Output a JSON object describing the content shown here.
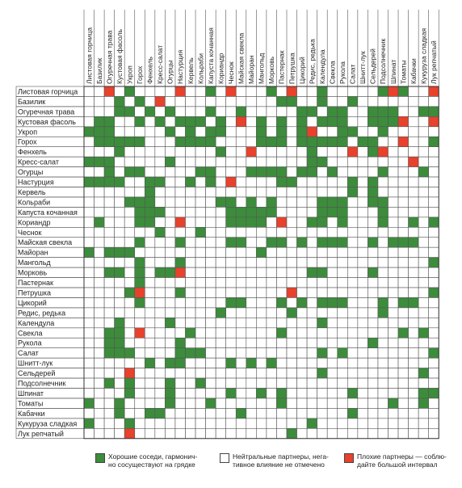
{
  "chart_data": {
    "type": "heatmap",
    "columns": [
      "Листовая горчица",
      "Базилик",
      "Огуречная трава",
      "Кустовая фасоль",
      "Укроп",
      "Горох",
      "Фенхель",
      "Кресс-салат",
      "Огурцы",
      "Настурция",
      "Кервель",
      "Кольраби",
      "Капуста кочанная",
      "Кориандр",
      "Чеснок",
      "Майская свекла",
      "Майоран",
      "Мангольд",
      "Морковь",
      "Пастернак",
      "Петрушка",
      "Цикорий",
      "Редис, редька",
      "Календула",
      "Свекла",
      "Рукола",
      "Салат",
      "Шнитт-лук",
      "Сельдерей",
      "Подсолнечник",
      "Шпинат",
      "Томаты",
      "Кабачки",
      "Кукуруза сладкая",
      "Лук репчатый"
    ],
    "rows": [
      "Листовая горчица",
      "Базилик",
      "Огуречная трава",
      "Кустовая фасоль",
      "Укроп",
      "Горох",
      "Фенхель",
      "Кресс-салат",
      "Огурцы",
      "Настурция",
      "Кервель",
      "Кольраби",
      "Капуста кочанная",
      "Кориандр",
      "Чеснок",
      "Майская свекла",
      "Майоран",
      "Мангольд",
      "Морковь",
      "Пастернак",
      "Петрушка",
      "Цикорий",
      "Редис, редька",
      "Календула",
      "Свекла",
      "Рукола",
      "Салат",
      "Шнитт-лук",
      "Сельдерей",
      "Подсолнечник",
      "Шпинат",
      "Томаты",
      "Кабачки",
      "Кукуруза сладкая",
      "Лук репчатый"
    ],
    "values": [
      "00201000020010200010200100000121002",
      "00010102000000000001100100100000000",
      "00011010100010010000011011001110011",
      "01100101011101020101010111001112002",
      "11100000101011000101012001100100000",
      "01111100011110000111011111011002001",
      "00010000000001002000001000201200000",
      "11100000100000000000001100000000200",
      "00101100000110001111011010000100010",
      "11110011001010200001100000101000000",
      "00000010000000000000000000101000000",
      "00001110000001101010000111001100000",
      "00000111000000111110000111000100000",
      "01000110020000111102001101000100101",
      "00000001000100000000000000000000000",
      "00000100010000110011010111001011100",
      "10111000000000000100000000000000000",
      "00000100010000000000000000000000001",
      "00110101120000000000001100001000000",
      "00000100000000000000000000000000000",
      "00001200010000000000200000000000001",
      "00000100000000110001010111000101100",
      "00000000000001000000100000000100000",
      "00010000100000000000000100000000000",
      "00110200001000000001000000000001010",
      "00110000010000000000000000001000000",
      "00111000011100000000000101000000001",
      "00000010110000101010000000000000000",
      "00002000000000000000000100000000010",
      "00101000100100000000000000000000000",
      "00001000100000100101000000100000011",
      "10010000100010000001000000000010010",
      "00010011000000010000000000100000000",
      "10001000000000000000001000000000000",
      "00002000000000000000100000000000000"
    ],
    "legend": [
      {
        "label": "Хорошие соседи, гармонично сосуществуют на грядке",
        "color": "#3c8c3c"
      },
      {
        "label": "Нейтральные партнеры, негативное влияние не отмечено",
        "color": "#ffffff"
      },
      {
        "label": "Плохие партнеры — соблюдайте большой интервал",
        "color": "#e8412c"
      }
    ],
    "colors": {
      "good": "#3c8c3c",
      "neutral": "#ffffff",
      "bad": "#e8412c"
    }
  },
  "legend": {
    "good_line1": "Хорошие соседи, гармонич-",
    "good_line2": "но сосуществуют на грядке",
    "neutral_line1": "Нейтральные партнеры, нега-",
    "neutral_line2": "тивное влияние не отмечено",
    "bad_line1": "Плохие партнеры — соблю-",
    "bad_line2": "дайте большой интервал"
  }
}
